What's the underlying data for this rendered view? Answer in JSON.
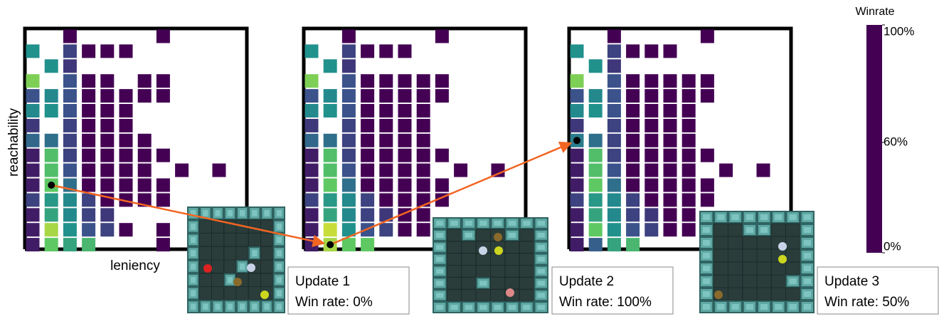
{
  "chart_data": {
    "type": "heatmap",
    "xlabel": "leniency",
    "ylabel": "reachability",
    "colorbar": {
      "title": "Winrate",
      "ticks": [
        {
          "value": 0,
          "label": "0%"
        },
        {
          "value": 60,
          "label": "60%"
        },
        {
          "value": 100,
          "label": "100%"
        }
      ],
      "colormap": [
        "#440154",
        "#3b528b",
        "#21918c",
        "#5ec962",
        "#fde725"
      ]
    },
    "panels": [
      {
        "title": "Update 1",
        "win_rate": "Win rate: 0%",
        "selected": [
          10,
          1
        ],
        "values": [
          [
            null,
            null,
            100,
            null,
            null,
            null,
            null,
            100,
            null,
            null,
            null,
            null
          ],
          [
            30,
            null,
            12,
            100,
            100,
            100,
            null,
            null,
            null,
            null,
            null,
            null
          ],
          [
            null,
            30,
            10,
            null,
            null,
            null,
            null,
            null,
            null,
            null,
            null,
            null
          ],
          [
            48,
            null,
            15,
            100,
            100,
            null,
            100,
            100,
            null,
            null,
            null,
            null
          ],
          [
            15,
            28,
            15,
            100,
            100,
            100,
            100,
            100,
            null,
            null,
            null,
            null
          ],
          [
            28,
            30,
            15,
            100,
            100,
            100,
            null,
            null,
            null,
            null,
            null,
            null
          ],
          [
            10,
            null,
            12,
            100,
            100,
            100,
            null,
            null,
            null,
            null,
            null,
            null
          ],
          [
            20,
            22,
            12,
            100,
            100,
            100,
            100,
            null,
            null,
            null,
            null,
            null
          ],
          [
            5,
            42,
            12,
            100,
            100,
            100,
            100,
            100,
            null,
            null,
            null,
            null
          ],
          [
            5,
            42,
            15,
            100,
            100,
            100,
            100,
            null,
            100,
            null,
            100,
            null
          ],
          [
            5,
            45,
            22,
            100,
            100,
            100,
            100,
            100,
            null,
            null,
            null,
            null
          ],
          [
            12,
            32,
            28,
            12,
            100,
            100,
            100,
            100,
            null,
            null,
            null,
            null
          ],
          [
            5,
            35,
            28,
            12,
            10,
            null,
            null,
            null,
            null,
            null,
            null,
            null
          ],
          [
            5,
            52,
            30,
            15,
            12,
            100,
            null,
            100,
            null,
            null,
            null,
            null
          ],
          [
            5,
            45,
            35,
            40,
            null,
            null,
            null,
            100,
            null,
            null,
            null,
            null
          ]
        ]
      },
      {
        "title": "Update 2",
        "win_rate": "Win rate: 100%",
        "selected": [
          14,
          1
        ],
        "values": [
          [
            null,
            null,
            100,
            null,
            null,
            null,
            null,
            100,
            null,
            null,
            null,
            null
          ],
          [
            30,
            null,
            12,
            100,
            100,
            100,
            null,
            null,
            null,
            null,
            null,
            null
          ],
          [
            null,
            30,
            10,
            null,
            null,
            null,
            null,
            null,
            null,
            null,
            null,
            null
          ],
          [
            48,
            null,
            15,
            100,
            100,
            100,
            100,
            100,
            null,
            null,
            null,
            null
          ],
          [
            15,
            28,
            15,
            100,
            100,
            100,
            100,
            100,
            null,
            null,
            null,
            null
          ],
          [
            28,
            30,
            15,
            100,
            100,
            100,
            100,
            null,
            null,
            null,
            null,
            null
          ],
          [
            10,
            null,
            12,
            100,
            100,
            100,
            100,
            null,
            null,
            null,
            null,
            null
          ],
          [
            20,
            22,
            12,
            100,
            100,
            100,
            100,
            null,
            null,
            null,
            null,
            null
          ],
          [
            5,
            42,
            12,
            100,
            100,
            100,
            100,
            100,
            null,
            null,
            null,
            null
          ],
          [
            5,
            42,
            15,
            100,
            100,
            100,
            100,
            null,
            100,
            null,
            100,
            null
          ],
          [
            5,
            45,
            22,
            100,
            100,
            100,
            100,
            100,
            null,
            null,
            null,
            null
          ],
          [
            12,
            32,
            28,
            12,
            100,
            100,
            100,
            100,
            null,
            null,
            null,
            null
          ],
          [
            5,
            35,
            28,
            12,
            10,
            100,
            100,
            null,
            null,
            null,
            null,
            null
          ],
          [
            5,
            55,
            30,
            15,
            12,
            100,
            100,
            100,
            null,
            null,
            null,
            null
          ],
          [
            5,
            52,
            45,
            45,
            null,
            null,
            null,
            null,
            null,
            null,
            null,
            null
          ]
        ]
      },
      {
        "title": "Update 3",
        "win_rate": "Win rate: 50%",
        "selected": [
          7,
          0
        ],
        "values": [
          [
            null,
            null,
            100,
            null,
            null,
            null,
            null,
            100,
            null,
            null,
            null,
            null
          ],
          [
            30,
            null,
            12,
            100,
            100,
            100,
            null,
            null,
            null,
            null,
            null,
            null
          ],
          [
            null,
            30,
            10,
            null,
            null,
            null,
            null,
            null,
            null,
            null,
            null,
            null
          ],
          [
            48,
            null,
            15,
            100,
            100,
            100,
            100,
            100,
            null,
            null,
            null,
            null
          ],
          [
            15,
            28,
            15,
            100,
            100,
            100,
            100,
            100,
            null,
            null,
            null,
            null
          ],
          [
            28,
            30,
            15,
            100,
            100,
            100,
            100,
            null,
            null,
            null,
            null,
            null
          ],
          [
            10,
            null,
            12,
            100,
            100,
            100,
            100,
            null,
            null,
            null,
            null,
            null
          ],
          [
            25,
            22,
            12,
            100,
            100,
            100,
            100,
            null,
            null,
            null,
            null,
            null
          ],
          [
            5,
            42,
            12,
            100,
            100,
            100,
            100,
            100,
            null,
            null,
            null,
            null
          ],
          [
            5,
            42,
            15,
            100,
            100,
            100,
            100,
            null,
            100,
            null,
            100,
            null
          ],
          [
            5,
            45,
            22,
            100,
            100,
            100,
            100,
            100,
            null,
            null,
            null,
            null
          ],
          [
            12,
            32,
            28,
            12,
            100,
            100,
            100,
            100,
            null,
            null,
            null,
            null
          ],
          [
            5,
            35,
            28,
            12,
            10,
            100,
            100,
            null,
            null,
            null,
            null,
            null
          ],
          [
            5,
            45,
            30,
            15,
            12,
            100,
            100,
            100,
            null,
            null,
            null,
            null
          ],
          [
            5,
            18,
            35,
            40,
            null,
            null,
            null,
            null,
            null,
            null,
            null,
            null
          ]
        ]
      }
    ]
  }
}
